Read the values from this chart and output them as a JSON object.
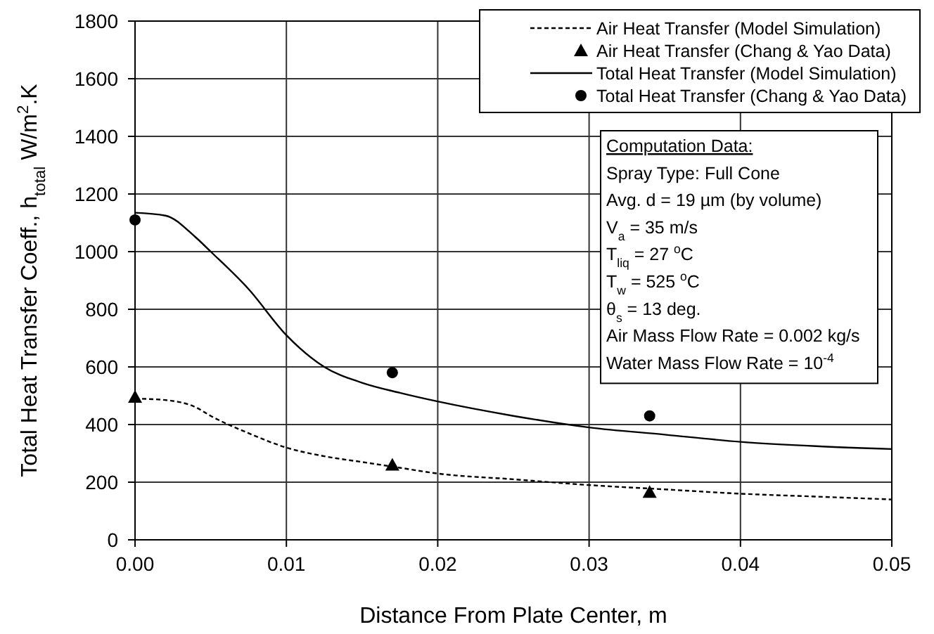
{
  "chart_data": {
    "type": "line",
    "xlabel": "Distance From Plate Center, m",
    "ylabel": "Total Heat Transfer Coeff., h$_{total}$ W/m$^{2}$.K",
    "xlim": [
      0,
      0.05
    ],
    "xticks": [
      {
        "value": 0,
        "label": "0.00"
      },
      {
        "value": 0.01,
        "label": "0.01"
      },
      {
        "value": 0.02,
        "label": "0.02"
      },
      {
        "value": 0.03,
        "label": "0.03"
      },
      {
        "value": 0.04,
        "label": "0.04"
      },
      {
        "value": 0.05,
        "label": "0.05"
      }
    ],
    "ylim": [
      0,
      1800
    ],
    "yticks": [
      0,
      200,
      400,
      600,
      800,
      1000,
      1200,
      1400,
      1600,
      1800
    ],
    "grid": true,
    "legend": "top right",
    "series": [
      {
        "name": "Air Heat Transfer  (Model Simulation)",
        "color": "#000000",
        "line_style": "dashed",
        "marker": "none",
        "x": [
          0,
          0.002,
          0.004,
          0.005,
          0.0075,
          0.01,
          0.0125,
          0.015,
          0.0175,
          0.02,
          0.025,
          0.03,
          0.035,
          0.04,
          0.045,
          0.05
        ],
        "values": [
          490,
          485,
          460,
          430,
          370,
          320,
          290,
          270,
          250,
          230,
          210,
          190,
          175,
          160,
          150,
          140
        ]
      },
      {
        "name": "Air Heat Transfer  (Chang & Yao Data)",
        "type": "scatter",
        "color": "#000000",
        "marker": "triangle",
        "x": [
          0,
          0.017,
          0.034
        ],
        "values": [
          495,
          260,
          165
        ]
      },
      {
        "name": "Total Heat Transfer  (Model Simulation)",
        "color": "#000000",
        "line_style": "solid",
        "marker": "none",
        "x": [
          0,
          0.002,
          0.004,
          0.005,
          0.0075,
          0.01,
          0.0125,
          0.015,
          0.0175,
          0.02,
          0.025,
          0.03,
          0.035,
          0.04,
          0.045,
          0.05
        ],
        "values": [
          1135,
          1125,
          1050,
          1000,
          870,
          710,
          600,
          545,
          510,
          480,
          430,
          390,
          365,
          340,
          325,
          315
        ]
      },
      {
        "name": "Total Heat Transfer  (Chang & Yao Data)",
        "type": "scatter",
        "color": "#000000",
        "marker": "circle",
        "x": [
          0,
          0.017,
          0.034
        ],
        "values": [
          1110,
          580,
          430
        ]
      }
    ],
    "annotations": [
      "Computation Data:",
      "Spray Type:  Full Cone",
      "Avg. d = 19 µm (by volume)",
      "V$_{a}$ = 35 m/s",
      "T$_{liq}$ = 27 $^{o}$C",
      "T$_{w}$ = 525 $^{o}$C",
      "θ$_{s}$ = 13 deg.",
      "Air Mass Flow Rate = 0.002 kg/s",
      "Water Mass Flow Rate = 10$^{-4}$"
    ]
  }
}
